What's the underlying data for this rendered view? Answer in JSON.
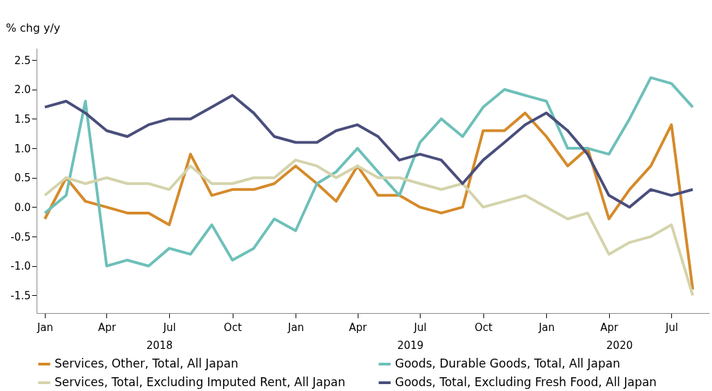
{
  "chart_data": {
    "type": "line",
    "ylabel": "% chg y/y",
    "x": [
      "2018-01",
      "2018-02",
      "2018-03",
      "2018-04",
      "2018-05",
      "2018-06",
      "2018-07",
      "2018-08",
      "2018-09",
      "2018-10",
      "2018-11",
      "2018-12",
      "2019-01",
      "2019-02",
      "2019-03",
      "2019-04",
      "2019-05",
      "2019-06",
      "2019-07",
      "2019-08",
      "2019-09",
      "2019-10",
      "2019-11",
      "2019-12",
      "2020-01",
      "2020-02",
      "2020-03",
      "2020-04",
      "2020-05",
      "2020-06",
      "2020-07",
      "2020-08"
    ],
    "series": [
      {
        "name": "Services, Other, Total, All Japan",
        "color": "#d58a2a",
        "values": [
          -0.2,
          0.5,
          0.1,
          0.0,
          -0.1,
          -0.1,
          -0.3,
          0.9,
          0.2,
          0.3,
          0.3,
          0.4,
          0.7,
          0.4,
          0.1,
          0.7,
          0.2,
          0.2,
          0.0,
          -0.1,
          0.0,
          1.3,
          1.3,
          1.6,
          1.2,
          0.7,
          1.0,
          -0.2,
          0.3,
          0.7,
          1.4,
          -1.4
        ]
      },
      {
        "name": "Goods, Durable Goods, Total, All Japan",
        "color": "#6ec0b9",
        "values": [
          -0.1,
          0.2,
          1.8,
          -1.0,
          -0.9,
          -1.0,
          -0.7,
          -0.8,
          -0.3,
          -0.9,
          -0.7,
          -0.2,
          -0.4,
          0.4,
          0.6,
          1.0,
          0.6,
          0.2,
          1.1,
          1.5,
          1.2,
          1.7,
          2.0,
          1.9,
          1.8,
          1.0,
          1.0,
          0.9,
          1.5,
          2.2,
          2.1,
          1.7
        ]
      },
      {
        "name": "Services, Total, Excluding Imputed Rent, All Japan",
        "color": "#d4d3ab",
        "values": [
          0.2,
          0.5,
          0.4,
          0.5,
          0.4,
          0.4,
          0.3,
          0.7,
          0.4,
          0.4,
          0.5,
          0.5,
          0.8,
          0.7,
          0.5,
          0.7,
          0.5,
          0.5,
          0.4,
          0.3,
          0.4,
          0.0,
          0.1,
          0.2,
          0.0,
          -0.2,
          -0.1,
          -0.8,
          -0.6,
          -0.5,
          -0.3,
          -1.5
        ]
      },
      {
        "name": "Goods, Total, Excluding Fresh Food, All Japan",
        "color": "#4a4e7c",
        "values": [
          1.7,
          1.8,
          1.6,
          1.3,
          1.2,
          1.4,
          1.5,
          1.5,
          1.7,
          1.9,
          1.6,
          1.2,
          1.1,
          1.1,
          1.3,
          1.4,
          1.2,
          0.8,
          0.9,
          0.8,
          0.4,
          0.8,
          1.1,
          1.4,
          1.6,
          1.3,
          0.9,
          0.2,
          0.0,
          0.3,
          0.2,
          0.3
        ]
      }
    ],
    "ylim": [
      -1.8,
      2.7
    ],
    "yticks": [
      {
        "value": -1.5,
        "label": "-1.5"
      },
      {
        "value": -1.0,
        "label": "-1.0"
      },
      -0.5,
      {
        "value": 0.0,
        "label": "0.0"
      },
      0.5,
      {
        "value": 1.0,
        "label": "1.0"
      },
      1.5,
      {
        "value": 2.0,
        "label": "2.0"
      },
      2.5
    ],
    "xlim": [
      "2017-12-20",
      "2020-08-25"
    ],
    "xticks": [
      {
        "value": "2018-01",
        "label": "Jan"
      },
      {
        "value": "2018-04",
        "label": "Apr"
      },
      {
        "value": "2018-07",
        "label": "Jul"
      },
      {
        "value": "2018-10",
        "label": "Oct"
      },
      {
        "value": "2019-01",
        "label": "Jan"
      },
      {
        "value": "2019-04",
        "label": "Apr"
      },
      {
        "value": "2019-07",
        "label": "Jul"
      },
      {
        "value": "2019-10",
        "label": "Oct"
      },
      {
        "value": "2020-01",
        "label": "Jan"
      },
      {
        "value": "2020-04",
        "label": "Apr"
      },
      {
        "value": "2020-07",
        "label": "Jul"
      }
    ],
    "annotations": [
      "2018",
      "2019",
      "2020"
    ],
    "grid": false,
    "legend": "bottom",
    "marker": "none",
    "line_style": "solid"
  }
}
